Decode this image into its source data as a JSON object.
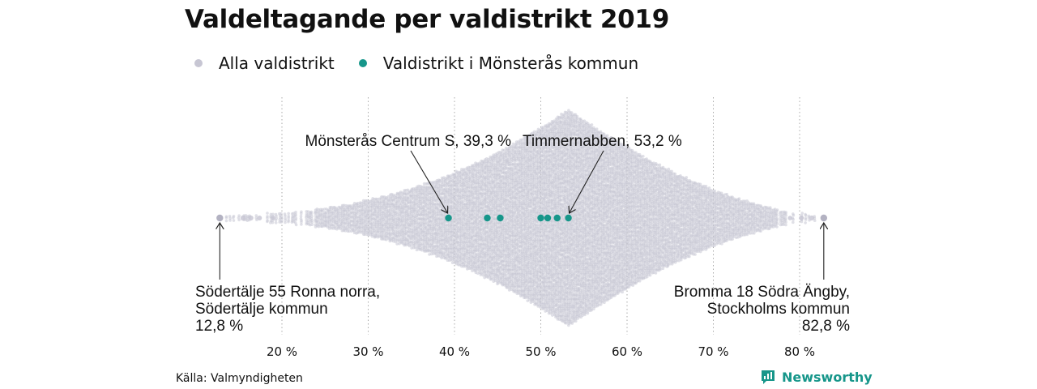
{
  "title": "Valdeltagande per valdistrikt 2019",
  "legend": {
    "all_label": "Alla valdistrikt",
    "local_label": "Valdistrikt i Mönsterås kommun"
  },
  "colors": {
    "all": "#c7c6d3",
    "local": "#16968a",
    "grid": "#aaaaaa",
    "text": "#111111"
  },
  "chart_data": {
    "type": "scatter",
    "title": "Valdeltagande per valdistrikt 2019",
    "xlabel": "",
    "ylabel": "",
    "xlim": [
      12,
      85
    ],
    "x_ticks": [
      20,
      30,
      40,
      50,
      60,
      70,
      80
    ],
    "x_tick_labels": [
      "20 %",
      "30 %",
      "40 %",
      "50 %",
      "60 %",
      "70 %",
      "80 %"
    ],
    "grid": "vertical dotted",
    "series": [
      {
        "name": "Alla valdistrikt",
        "distribution": "beeswarm",
        "min": 12.8,
        "max": 82.8,
        "peak": 53.2
      },
      {
        "name": "Valdistrikt i Mönsterås kommun",
        "values": [
          39.3,
          43.8,
          45.3,
          50.0,
          50.8,
          51.9,
          53.2
        ]
      }
    ],
    "annotations": [
      {
        "text": "Mönsterås Centrum S, 39,3 %",
        "x": 39.3,
        "position": "above"
      },
      {
        "text": "Timmernabben, 53,2 %",
        "x": 53.2,
        "position": "above"
      },
      {
        "lines": [
          "Södertälje 55 Ronna norra,",
          "Södertälje kommun",
          "12,8 %"
        ],
        "x": 12.8,
        "position": "below-left"
      },
      {
        "lines": [
          "Bromma 18 Södra Ängby,",
          "Stockholms kommun",
          "82,8 %"
        ],
        "x": 82.8,
        "position": "below-right"
      }
    ]
  },
  "source": "Källa: Valmyndigheten",
  "brand": "Newsworthy"
}
